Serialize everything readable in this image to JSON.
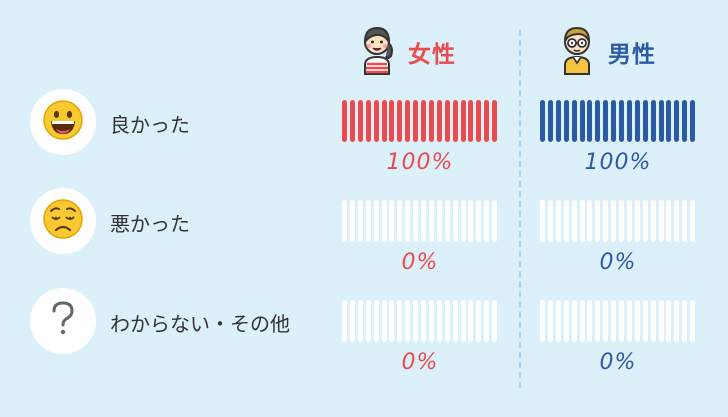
{
  "colors": {
    "background": "#dcf0fa",
    "female": "#ea4b4e",
    "male": "#2c5aa5",
    "empty_tick": "#ffffff",
    "divider": "#a9d3ea"
  },
  "chart_data": {
    "type": "bar",
    "categories": [
      "良かった",
      "悪かった",
      "わからない・その他"
    ],
    "category_icons": [
      "grinning-face-icon",
      "worried-face-icon",
      "question-mark-icon"
    ],
    "series": [
      {
        "name": "女性",
        "icon": "girl-avatar-icon",
        "values": [
          100,
          0,
          0
        ],
        "labels": [
          "100%",
          "0%",
          "0%"
        ]
      },
      {
        "name": "男性",
        "icon": "boy-with-glasses-avatar-icon",
        "values": [
          100,
          0,
          0
        ],
        "labels": [
          "100%",
          "0%",
          "0%"
        ]
      }
    ],
    "ticks_per_bar": 20,
    "ylim": [
      0,
      100
    ],
    "legend": "top"
  }
}
